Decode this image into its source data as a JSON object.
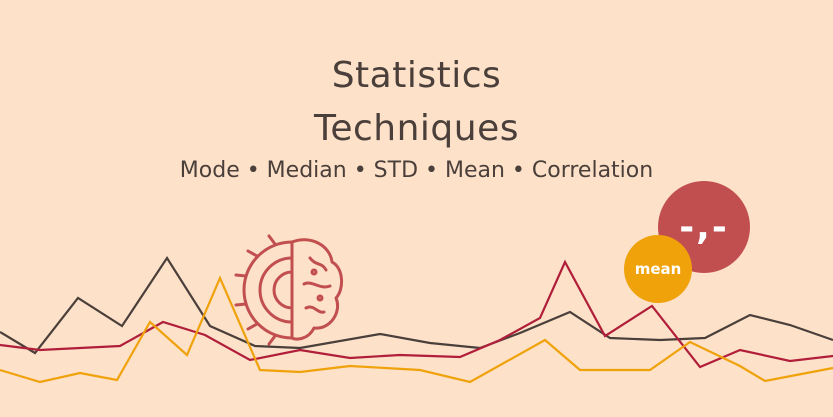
{
  "title": {
    "line1": "Statistics",
    "line2": "Techniques"
  },
  "subtitle": "Mode • Median • STD • Mean • Correlation",
  "bubbles": {
    "large_text": "-,-",
    "small_text": "mean"
  },
  "colors": {
    "background": "#fde1c8",
    "text": "#4a3f3a",
    "dark_line": "#4a3f3a",
    "red_line": "#b01e3a",
    "orange_line": "#f0a20b",
    "bubble_large": "#c24f4f",
    "bubble_small": "#f0a20b",
    "icon": "#c24f4f"
  },
  "icons": {
    "brain_gear": "brain-gear-icon"
  }
}
